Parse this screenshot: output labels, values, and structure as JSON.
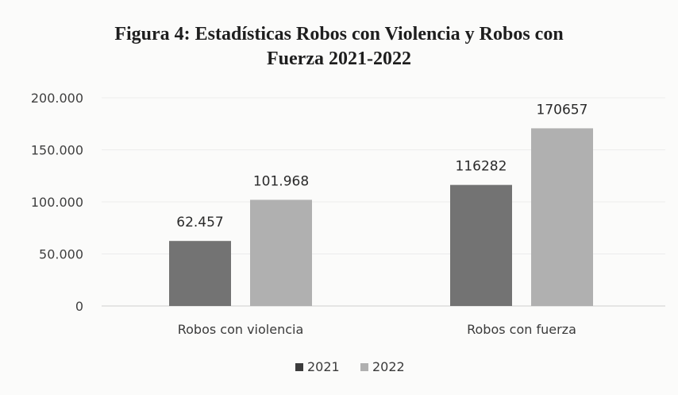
{
  "chart_data": {
    "type": "bar",
    "title_lines": [
      "Figura 4: Estadísticas Robos con Violencia y Robos con",
      "Fuerza 2021-2022"
    ],
    "categories": [
      "Robos con violencia",
      "Robos con fuerza"
    ],
    "series": [
      {
        "name": "2021",
        "values": [
          62457,
          116282
        ],
        "labels": [
          "62.457",
          "116282"
        ],
        "color": "#737373"
      },
      {
        "name": "2022",
        "values": [
          101968,
          170657
        ],
        "labels": [
          "101.968",
          "170657"
        ],
        "color": "#b0b0b0"
      }
    ],
    "yticks": [
      {
        "value": 0,
        "label": "0"
      },
      {
        "value": 50000,
        "label": "50.000"
      },
      {
        "value": 100000,
        "label": "100.000"
      },
      {
        "value": 150000,
        "label": "150.000"
      },
      {
        "value": 200000,
        "label": "200.000"
      }
    ],
    "ylim": [
      0,
      200000
    ],
    "xlabel": "",
    "ylabel": "",
    "grid": true,
    "legend_position": "bottom"
  }
}
